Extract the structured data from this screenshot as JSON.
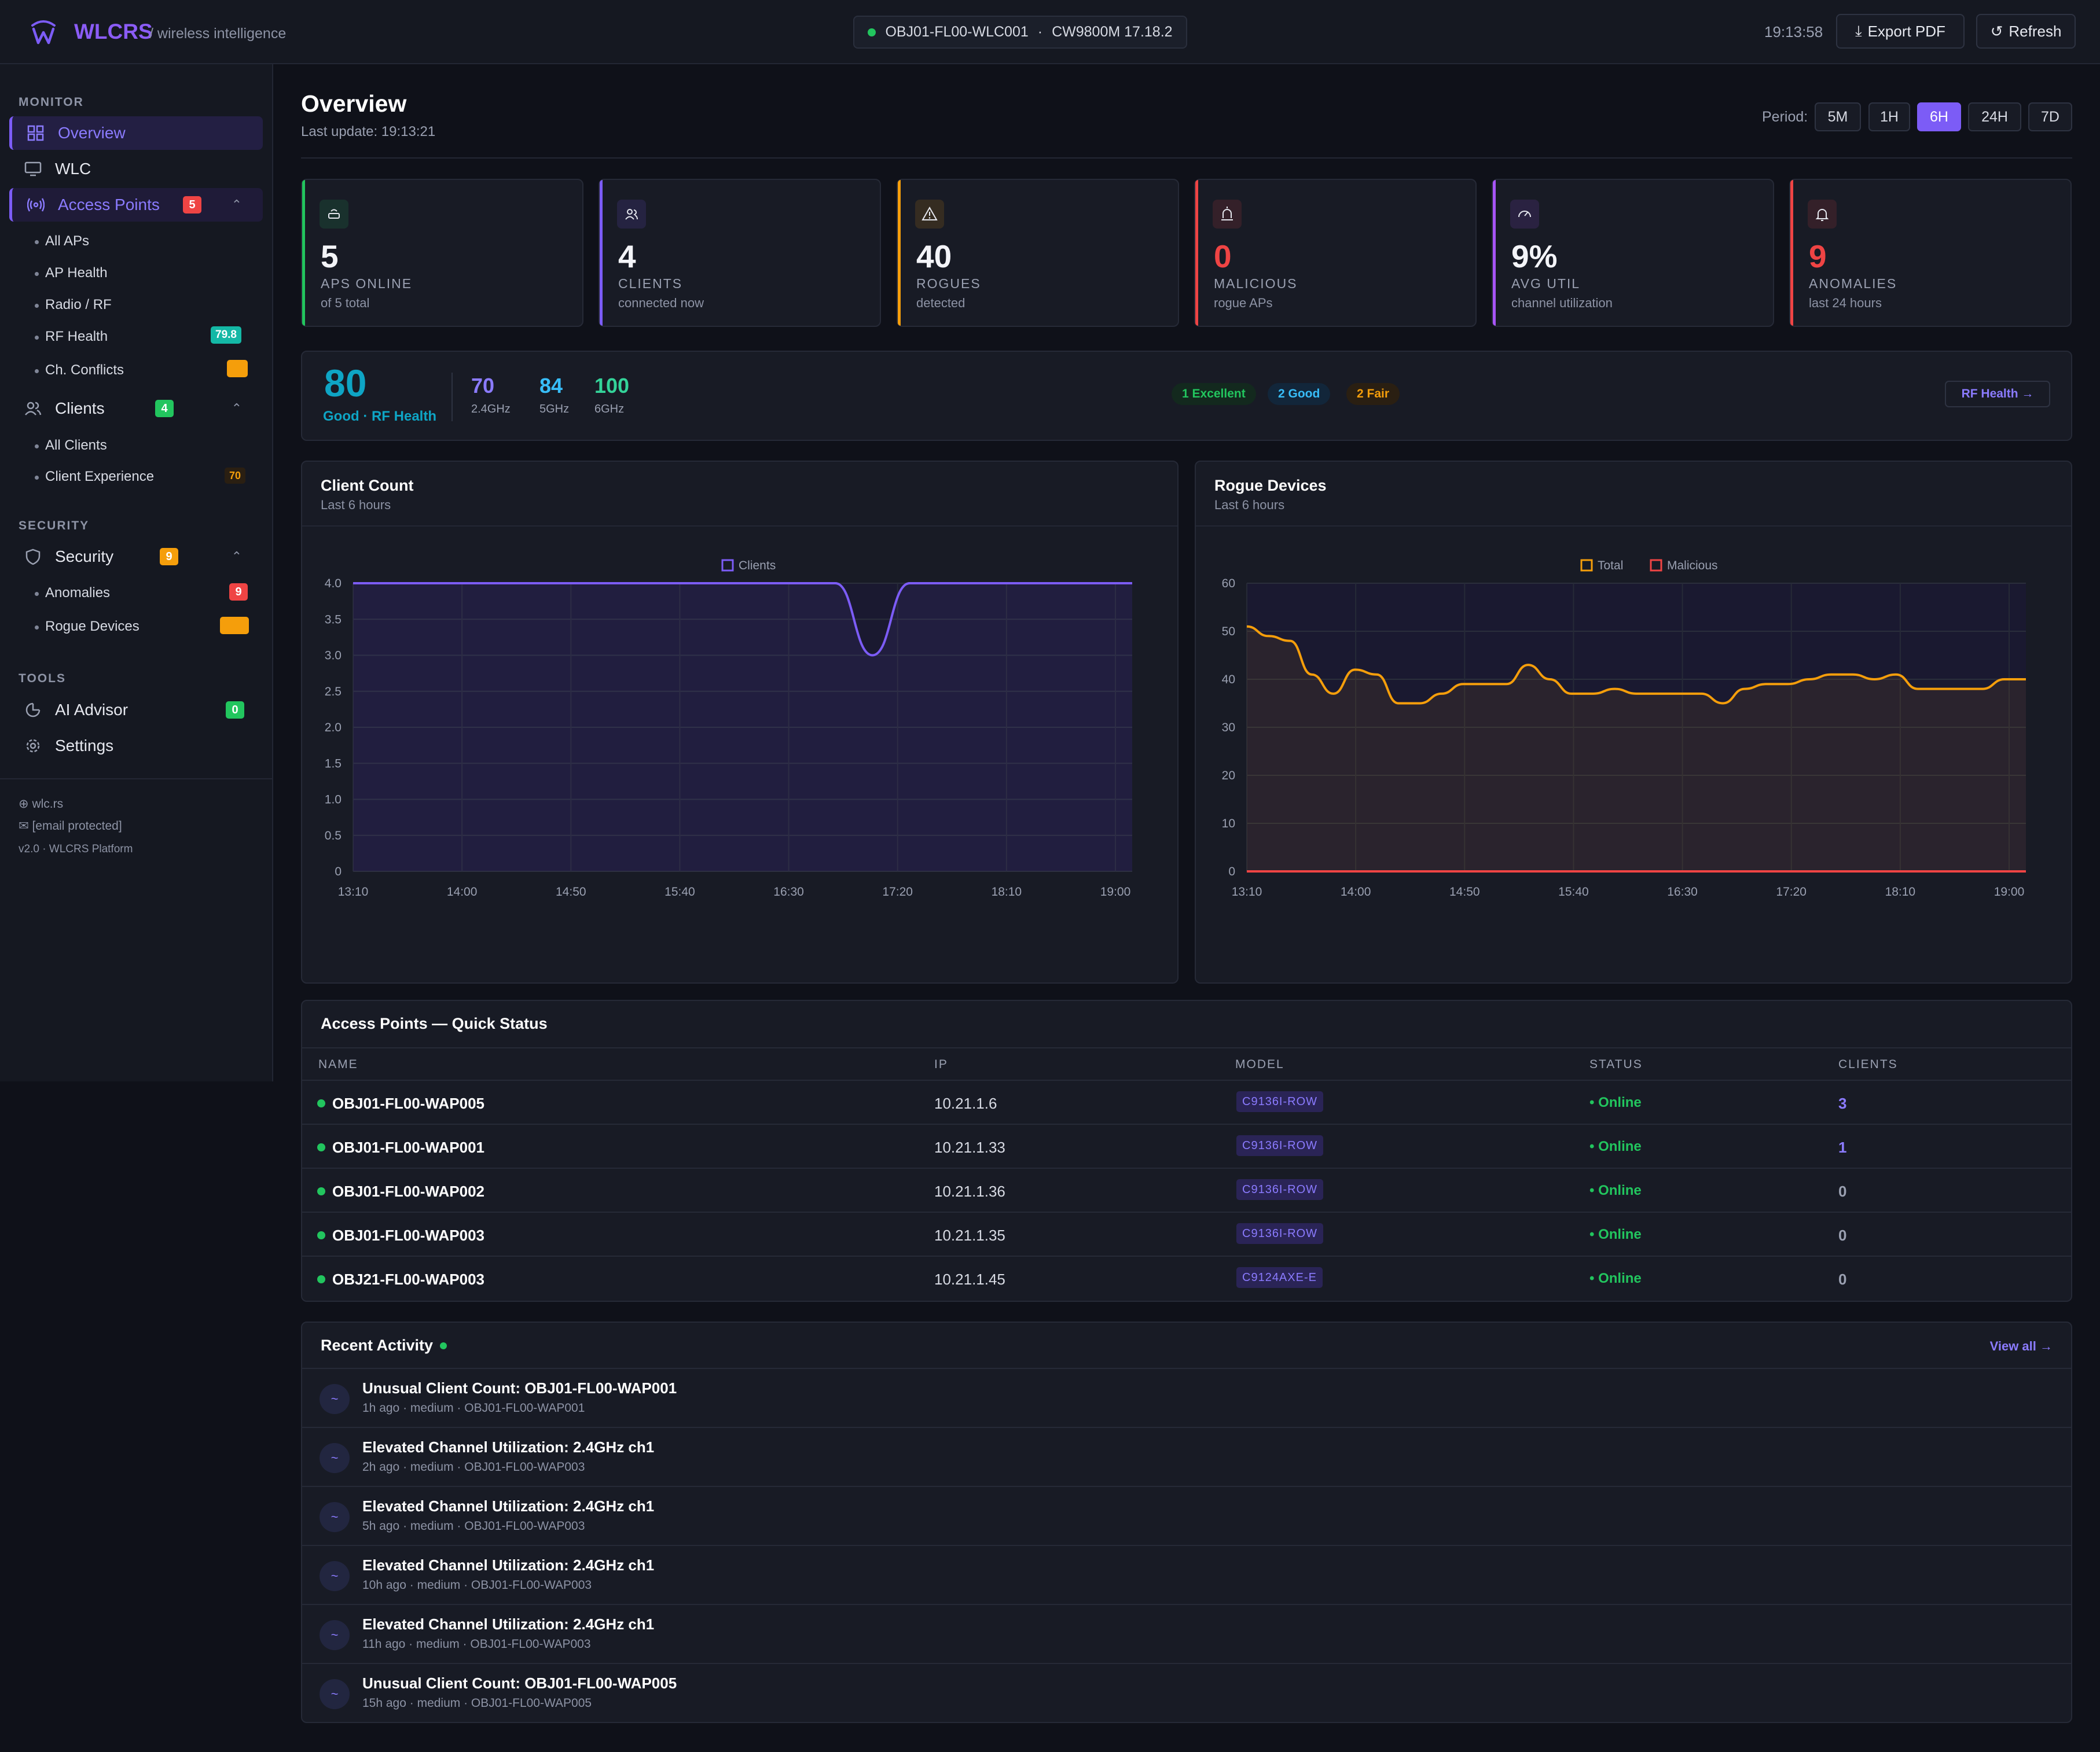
{
  "header": {
    "brand": "WLCRS",
    "tagline": "/ wireless intelligence",
    "controller": "OBJ01-FL00-WLC001",
    "separator": "·",
    "version": "CW9800M 17.18.2",
    "clock": "19:13:58",
    "export_label": "Export PDF",
    "refresh_label": "Refresh"
  },
  "sidebar": {
    "monitor_label": "MONITOR",
    "overview": "Overview",
    "wlc": "WLC",
    "access_points": "Access Points",
    "access_points_badge": "5",
    "ap_sub": [
      "All APs",
      "AP Health",
      "Radio / RF",
      "RF Health",
      "Ch. Conflicts"
    ],
    "rf_health_badge": "79.8",
    "clients": "Clients",
    "clients_badge": "4",
    "client_sub": [
      "All Clients",
      "Client Experience"
    ],
    "client_exp_badge": "70",
    "security_label": "SECURITY",
    "security": "Security",
    "security_badge": "9",
    "security_sub": [
      "Anomalies",
      "Rogue Devices"
    ],
    "anomalies_badge": "9",
    "tools_label": "TOOLS",
    "ai_advisor": "AI Advisor",
    "ai_badge": "0",
    "settings": "Settings",
    "footer_site": "wlc.rs",
    "footer_email": "[email protected]",
    "footer_version": "v2.0 · WLCRS Platform"
  },
  "main": {
    "title": "Overview",
    "last_update": "Last update: 19:13:21",
    "period_label": "Period:",
    "periods": [
      "5M",
      "1H",
      "6H",
      "24H",
      "7D"
    ],
    "active_period": "6H"
  },
  "cards": [
    {
      "value": "5",
      "label": "APS ONLINE",
      "sub": "of 5 total",
      "color": "#22c55e",
      "icon": "router-icon"
    },
    {
      "value": "4",
      "label": "CLIENTS",
      "sub": "connected now",
      "color": "#7c5cf6",
      "icon": "users-icon"
    },
    {
      "value": "40",
      "label": "ROGUES",
      "sub": "detected",
      "color": "#f59e0b",
      "icon": "warning-icon"
    },
    {
      "value": "0",
      "label": "MALICIOUS",
      "sub": "rogue APs",
      "color": "#ef4444",
      "icon": "siren-icon"
    },
    {
      "value": "9%",
      "label": "AVG UTIL",
      "sub": "channel utilization",
      "color": "#a855f7",
      "icon": "gauge-icon"
    },
    {
      "value": "9",
      "label": "ANOMALIES",
      "sub": "last 24 hours",
      "color": "#ef4444",
      "icon": "bell-icon"
    }
  ],
  "rf": {
    "score": "80",
    "score_label": "Good · RF Health",
    "bands": [
      {
        "value": "70",
        "label": "2.4GHz",
        "color": "#8b7bff"
      },
      {
        "value": "84",
        "label": "5GHz",
        "color": "#38bdf8"
      },
      {
        "value": "100",
        "label": "6GHz",
        "color": "#34d399"
      }
    ],
    "pills": [
      "1 Excellent",
      "2 Good",
      "2 Fair"
    ],
    "link": "RF Health →"
  },
  "client_chart": {
    "title": "Client Count",
    "subtitle": "Last 6 hours"
  },
  "rogue_chart": {
    "title": "Rogue Devices",
    "subtitle": "Last 6 hours"
  },
  "chart_data": [
    {
      "type": "area",
      "title": "Client Count",
      "x": [
        "13:10",
        "13:30",
        "13:50",
        "14:10",
        "14:30",
        "14:50",
        "15:10",
        "15:30",
        "15:50",
        "16:10",
        "16:30",
        "16:50",
        "17:10",
        "17:20",
        "17:30",
        "17:40",
        "17:50",
        "18:00",
        "18:20",
        "18:40",
        "19:00",
        "19:13"
      ],
      "x_ticks": [
        "13:10",
        "14:00",
        "14:50",
        "15:40",
        "16:30",
        "17:20",
        "18:10",
        "19:00"
      ],
      "y_ticks": [
        "0",
        "0.5",
        "1.0",
        "1.5",
        "2.0",
        "2.5",
        "3.0",
        "3.5",
        "4.0"
      ],
      "ylim": [
        0,
        4
      ],
      "series": [
        {
          "name": "Clients",
          "color": "#7c5cf6",
          "values": [
            4,
            4,
            4,
            4,
            4,
            4,
            4,
            4,
            4,
            4,
            4,
            4,
            4,
            4,
            3,
            4,
            4,
            4,
            4,
            4,
            4,
            4
          ]
        }
      ]
    },
    {
      "type": "area",
      "title": "Rogue Devices",
      "x_ticks": [
        "13:10",
        "14:00",
        "14:50",
        "15:40",
        "16:30",
        "17:20",
        "18:10",
        "19:00"
      ],
      "y_ticks": [
        "0",
        "10",
        "20",
        "30",
        "40",
        "50",
        "60"
      ],
      "ylim": [
        0,
        60
      ],
      "series": [
        {
          "name": "Total",
          "color": "#f59e0b",
          "values": [
            51,
            49,
            48,
            41,
            37,
            42,
            41,
            35,
            35,
            37,
            39,
            39,
            39,
            43,
            40,
            37,
            37,
            38,
            37,
            37,
            37,
            37,
            35,
            38,
            39,
            39,
            40,
            41,
            41,
            40,
            41,
            38,
            38,
            38,
            38,
            40,
            40
          ]
        },
        {
          "name": "Malicious",
          "color": "#ef4444",
          "values": [
            0,
            0,
            0,
            0,
            0,
            0,
            0,
            0,
            0,
            0,
            0,
            0,
            0,
            0,
            0,
            0,
            0,
            0,
            0,
            0,
            0,
            0,
            0,
            0,
            0,
            0,
            0,
            0,
            0,
            0,
            0,
            0,
            0,
            0,
            0,
            0,
            0
          ]
        }
      ]
    }
  ],
  "ap_table": {
    "title": "Access Points — Quick Status",
    "columns": [
      "NAME",
      "IP",
      "MODEL",
      "STATUS",
      "CLIENTS"
    ],
    "rows": [
      {
        "name": "OBJ01-FL00-WAP005",
        "ip": "10.21.1.6",
        "model": "C9136I-ROW",
        "status": "• Online",
        "clients": "3"
      },
      {
        "name": "OBJ01-FL00-WAP001",
        "ip": "10.21.1.33",
        "model": "C9136I-ROW",
        "status": "• Online",
        "clients": "1"
      },
      {
        "name": "OBJ01-FL00-WAP002",
        "ip": "10.21.1.36",
        "model": "C9136I-ROW",
        "status": "• Online",
        "clients": "0"
      },
      {
        "name": "OBJ01-FL00-WAP003",
        "ip": "10.21.1.35",
        "model": "C9136I-ROW",
        "status": "• Online",
        "clients": "0"
      },
      {
        "name": "OBJ21-FL00-WAP003",
        "ip": "10.21.1.45",
        "model": "C9124AXE-E",
        "status": "• Online",
        "clients": "0"
      }
    ]
  },
  "activity": {
    "title": "Recent Activity",
    "view_all": "View all →",
    "items": [
      {
        "title": "Unusual Client Count: OBJ01-FL00-WAP001",
        "meta": "1h ago · medium · OBJ01-FL00-WAP001"
      },
      {
        "title": "Elevated Channel Utilization: 2.4GHz ch1",
        "meta": "2h ago · medium · OBJ01-FL00-WAP003"
      },
      {
        "title": "Elevated Channel Utilization: 2.4GHz ch1",
        "meta": "5h ago · medium · OBJ01-FL00-WAP003"
      },
      {
        "title": "Elevated Channel Utilization: 2.4GHz ch1",
        "meta": "10h ago · medium · OBJ01-FL00-WAP003"
      },
      {
        "title": "Elevated Channel Utilization: 2.4GHz ch1",
        "meta": "11h ago · medium · OBJ01-FL00-WAP003"
      },
      {
        "title": "Unusual Client Count: OBJ01-FL00-WAP005",
        "meta": "15h ago · medium · OBJ01-FL00-WAP005"
      }
    ]
  }
}
